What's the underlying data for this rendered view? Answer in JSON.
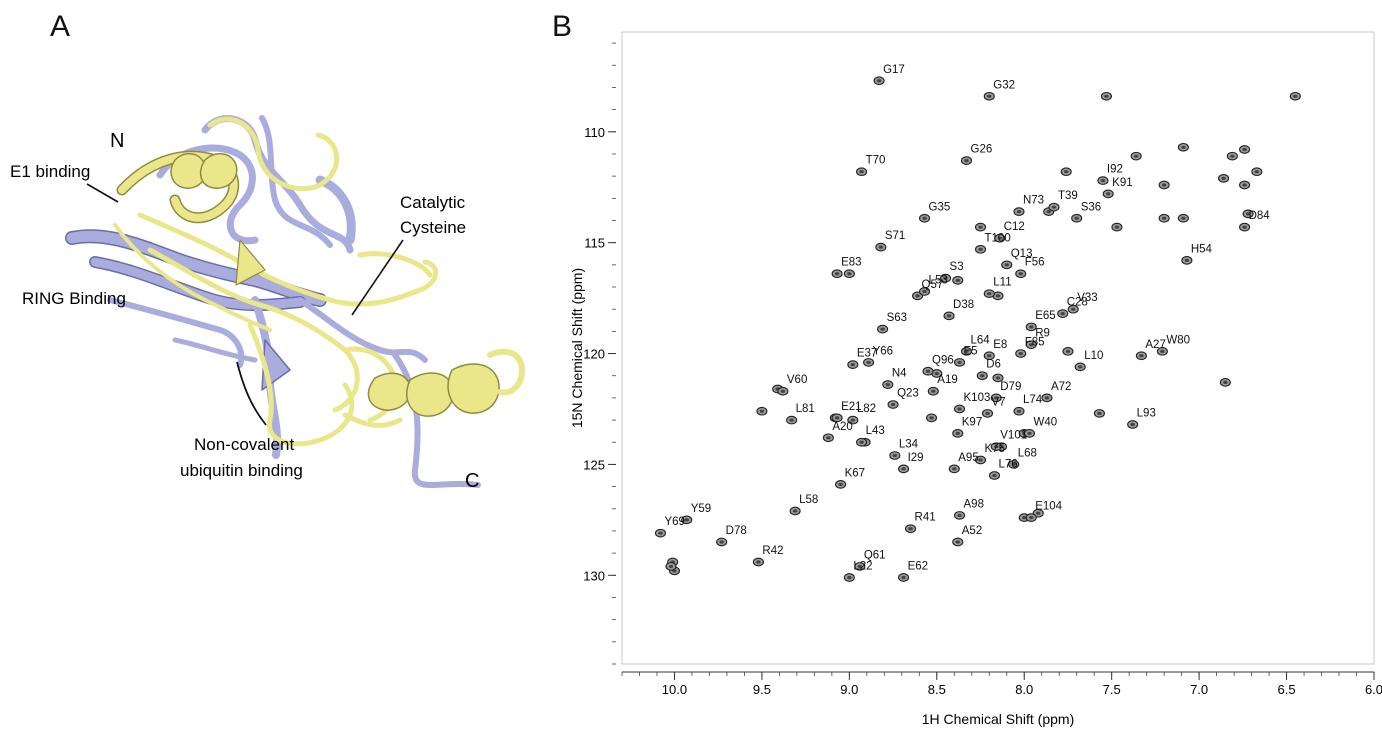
{
  "figure": {
    "panel_a_letter": "A",
    "panel_b_letter": "B"
  },
  "structure_panel": {
    "labels": {
      "n_terminus": "N",
      "c_terminus": "C",
      "e1": "E1 binding",
      "ring": "RING Binding",
      "catalytic_line1": "Catalytic",
      "catalytic_line2": "Cysteine",
      "noncov_line1": "Non-covalent",
      "noncov_line2": "ubiquitin binding"
    },
    "colors": {
      "structure_1": "#eae78a",
      "structure_2": "#a9acdd",
      "outline_1": "#8f8a3e",
      "outline_2": "#6b6ea6"
    }
  },
  "chart_data": {
    "type": "scatter",
    "xlabel": "1H Chemical Shift (ppm)",
    "ylabel": "15N Chemical Shift (ppm)",
    "xlim": [
      10.3,
      6.0
    ],
    "ylim": [
      134.0,
      105.5
    ],
    "x_reversed": true,
    "y_reversed": true,
    "xticks": [
      10.0,
      9.5,
      9.0,
      8.5,
      8.0,
      7.5,
      7.0,
      6.5,
      6.0
    ],
    "xtick_labels": [
      "10.0",
      "9.5",
      "9.0",
      "8.5",
      "8.0",
      "7.5",
      "7.0",
      "6.5",
      "6.0"
    ],
    "yticks": [
      110,
      115,
      120,
      125,
      130
    ],
    "ytick_labels": [
      "110",
      "115",
      "120",
      "125",
      "130"
    ],
    "grid": false,
    "labeled_peaks": [
      {
        "label": "G17",
        "x": 8.83,
        "y": 107.7
      },
      {
        "label": "G32",
        "x": 8.2,
        "y": 108.4
      },
      {
        "label": "G26",
        "x": 8.33,
        "y": 111.3
      },
      {
        "label": "T70",
        "x": 8.93,
        "y": 111.8
      },
      {
        "label": "I92",
        "x": 7.55,
        "y": 112.2
      },
      {
        "label": "K91",
        "x": 7.52,
        "y": 112.8
      },
      {
        "label": "T39",
        "x": 7.83,
        "y": 113.4
      },
      {
        "label": "N73",
        "x": 8.03,
        "y": 113.6
      },
      {
        "label": "G35",
        "x": 8.57,
        "y": 113.9
      },
      {
        "label": "S36",
        "x": 7.7,
        "y": 113.9
      },
      {
        "label": "D84",
        "x": 6.74,
        "y": 114.3
      },
      {
        "label": "S71",
        "x": 8.82,
        "y": 115.2
      },
      {
        "label": "C12",
        "x": 8.14,
        "y": 114.8
      },
      {
        "label": "T100",
        "x": 8.25,
        "y": 115.3
      },
      {
        "label": "H54",
        "x": 7.07,
        "y": 115.8
      },
      {
        "label": "E83",
        "x": 9.07,
        "y": 116.4
      },
      {
        "label": "S3",
        "x": 8.45,
        "y": 116.6
      },
      {
        "label": "Q13",
        "x": 8.1,
        "y": 116.0
      },
      {
        "label": "F56",
        "x": 8.02,
        "y": 116.4
      },
      {
        "label": "Q57",
        "x": 8.61,
        "y": 117.4
      },
      {
        "label": "L11",
        "x": 8.2,
        "y": 117.3
      },
      {
        "label": "L53",
        "x": 8.57,
        "y": 117.2
      },
      {
        "label": "C28",
        "x": 7.78,
        "y": 118.2
      },
      {
        "label": "V33",
        "x": 7.72,
        "y": 118.0
      },
      {
        "label": "D38",
        "x": 8.43,
        "y": 118.3
      },
      {
        "label": "E65",
        "x": 7.96,
        "y": 118.8
      },
      {
        "label": "S63",
        "x": 8.81,
        "y": 118.9
      },
      {
        "label": "L64",
        "x": 8.33,
        "y": 119.9
      },
      {
        "label": "R9",
        "x": 7.96,
        "y": 119.6
      },
      {
        "label": "E8",
        "x": 8.2,
        "y": 120.1
      },
      {
        "label": "E37",
        "x": 8.98,
        "y": 120.5
      },
      {
        "label": "Y66",
        "x": 8.89,
        "y": 120.4
      },
      {
        "label": "Q96",
        "x": 8.55,
        "y": 120.8
      },
      {
        "label": "E5",
        "x": 8.37,
        "y": 120.4
      },
      {
        "label": "D6",
        "x": 8.24,
        "y": 121.0
      },
      {
        "label": "F85",
        "x": 8.02,
        "y": 120.0
      },
      {
        "label": "L10",
        "x": 7.68,
        "y": 120.6
      },
      {
        "label": "A27",
        "x": 7.33,
        "y": 120.1
      },
      {
        "label": "W80",
        "x": 7.21,
        "y": 119.9
      },
      {
        "label": "N4",
        "x": 8.78,
        "y": 121.4
      },
      {
        "label": "A19",
        "x": 8.52,
        "y": 121.7
      },
      {
        "label": "D79",
        "x": 8.16,
        "y": 122.0
      },
      {
        "label": "A72",
        "x": 7.87,
        "y": 122.0
      },
      {
        "label": "V60",
        "x": 9.38,
        "y": 121.7
      },
      {
        "label": "E21",
        "x": 9.07,
        "y": 122.9
      },
      {
        "label": "L82",
        "x": 8.98,
        "y": 123.0
      },
      {
        "label": "Q23",
        "x": 8.75,
        "y": 122.3
      },
      {
        "label": "K103",
        "x": 8.37,
        "y": 122.5
      },
      {
        "label": "V7",
        "x": 8.21,
        "y": 122.7
      },
      {
        "label": "L74",
        "x": 8.03,
        "y": 122.6
      },
      {
        "label": "L81",
        "x": 9.33,
        "y": 123.0
      },
      {
        "label": "L93",
        "x": 7.38,
        "y": 123.2
      },
      {
        "label": "A20",
        "x": 9.12,
        "y": 123.8
      },
      {
        "label": "L43",
        "x": 8.93,
        "y": 124.0
      },
      {
        "label": "V101",
        "x": 8.16,
        "y": 124.2
      },
      {
        "label": "W40",
        "x": 7.97,
        "y": 123.6
      },
      {
        "label": "K97",
        "x": 8.38,
        "y": 123.6
      },
      {
        "label": "L34",
        "x": 8.74,
        "y": 124.6
      },
      {
        "label": "K75",
        "x": 8.25,
        "y": 124.8
      },
      {
        "label": "I29",
        "x": 8.69,
        "y": 125.2
      },
      {
        "label": "A95",
        "x": 8.4,
        "y": 125.2
      },
      {
        "label": "L68",
        "x": 8.06,
        "y": 125.0
      },
      {
        "label": "L76",
        "x": 8.17,
        "y": 125.5
      },
      {
        "label": "K67",
        "x": 9.05,
        "y": 125.9
      },
      {
        "label": "L58",
        "x": 9.31,
        "y": 127.1
      },
      {
        "label": "Y69",
        "x": 10.08,
        "y": 128.1
      },
      {
        "label": "Y59",
        "x": 9.93,
        "y": 127.5
      },
      {
        "label": "D78",
        "x": 9.73,
        "y": 128.5
      },
      {
        "label": "R41",
        "x": 8.65,
        "y": 127.9
      },
      {
        "label": "A98",
        "x": 8.37,
        "y": 127.3
      },
      {
        "label": "E104",
        "x": 7.96,
        "y": 127.4
      },
      {
        "label": "A52",
        "x": 8.38,
        "y": 128.5
      },
      {
        "label": "R42",
        "x": 9.52,
        "y": 129.4
      },
      {
        "label": "Q61",
        "x": 8.94,
        "y": 129.6
      },
      {
        "label": "L22",
        "x": 9.0,
        "y": 130.1
      },
      {
        "label": "E62",
        "x": 8.69,
        "y": 130.1
      }
    ],
    "unlabeled_peaks": [
      {
        "x": 7.53,
        "y": 108.4
      },
      {
        "x": 6.45,
        "y": 108.4
      },
      {
        "x": 7.09,
        "y": 110.7
      },
      {
        "x": 6.74,
        "y": 110.8
      },
      {
        "x": 7.36,
        "y": 111.1
      },
      {
        "x": 6.81,
        "y": 111.1
      },
      {
        "x": 7.76,
        "y": 111.8
      },
      {
        "x": 6.67,
        "y": 111.8
      },
      {
        "x": 6.86,
        "y": 112.1
      },
      {
        "x": 7.2,
        "y": 112.4
      },
      {
        "x": 6.74,
        "y": 112.4
      },
      {
        "x": 8.25,
        "y": 114.3
      },
      {
        "x": 7.47,
        "y": 114.3
      },
      {
        "x": 7.2,
        "y": 113.9
      },
      {
        "x": 7.09,
        "y": 113.9
      },
      {
        "x": 6.72,
        "y": 113.7
      },
      {
        "x": 7.86,
        "y": 113.6
      },
      {
        "x": 9.0,
        "y": 116.4
      },
      {
        "x": 8.38,
        "y": 116.7
      },
      {
        "x": 8.15,
        "y": 117.4
      },
      {
        "x": 7.75,
        "y": 119.9
      },
      {
        "x": 9.41,
        "y": 121.6
      },
      {
        "x": 6.85,
        "y": 121.3
      },
      {
        "x": 8.15,
        "y": 121.1
      },
      {
        "x": 8.5,
        "y": 120.9
      },
      {
        "x": 7.57,
        "y": 122.7
      },
      {
        "x": 8.53,
        "y": 122.9
      },
      {
        "x": 9.08,
        "y": 122.9
      },
      {
        "x": 8.91,
        "y": 124.0
      },
      {
        "x": 8.13,
        "y": 124.2
      },
      {
        "x": 8.0,
        "y": 123.6
      },
      {
        "x": 9.5,
        "y": 122.6
      },
      {
        "x": 8.0,
        "y": 127.4
      },
      {
        "x": 10.01,
        "y": 129.4
      },
      {
        "x": 10.0,
        "y": 129.8
      },
      {
        "x": 10.02,
        "y": 129.6
      },
      {
        "x": 7.92,
        "y": 127.2
      }
    ]
  }
}
